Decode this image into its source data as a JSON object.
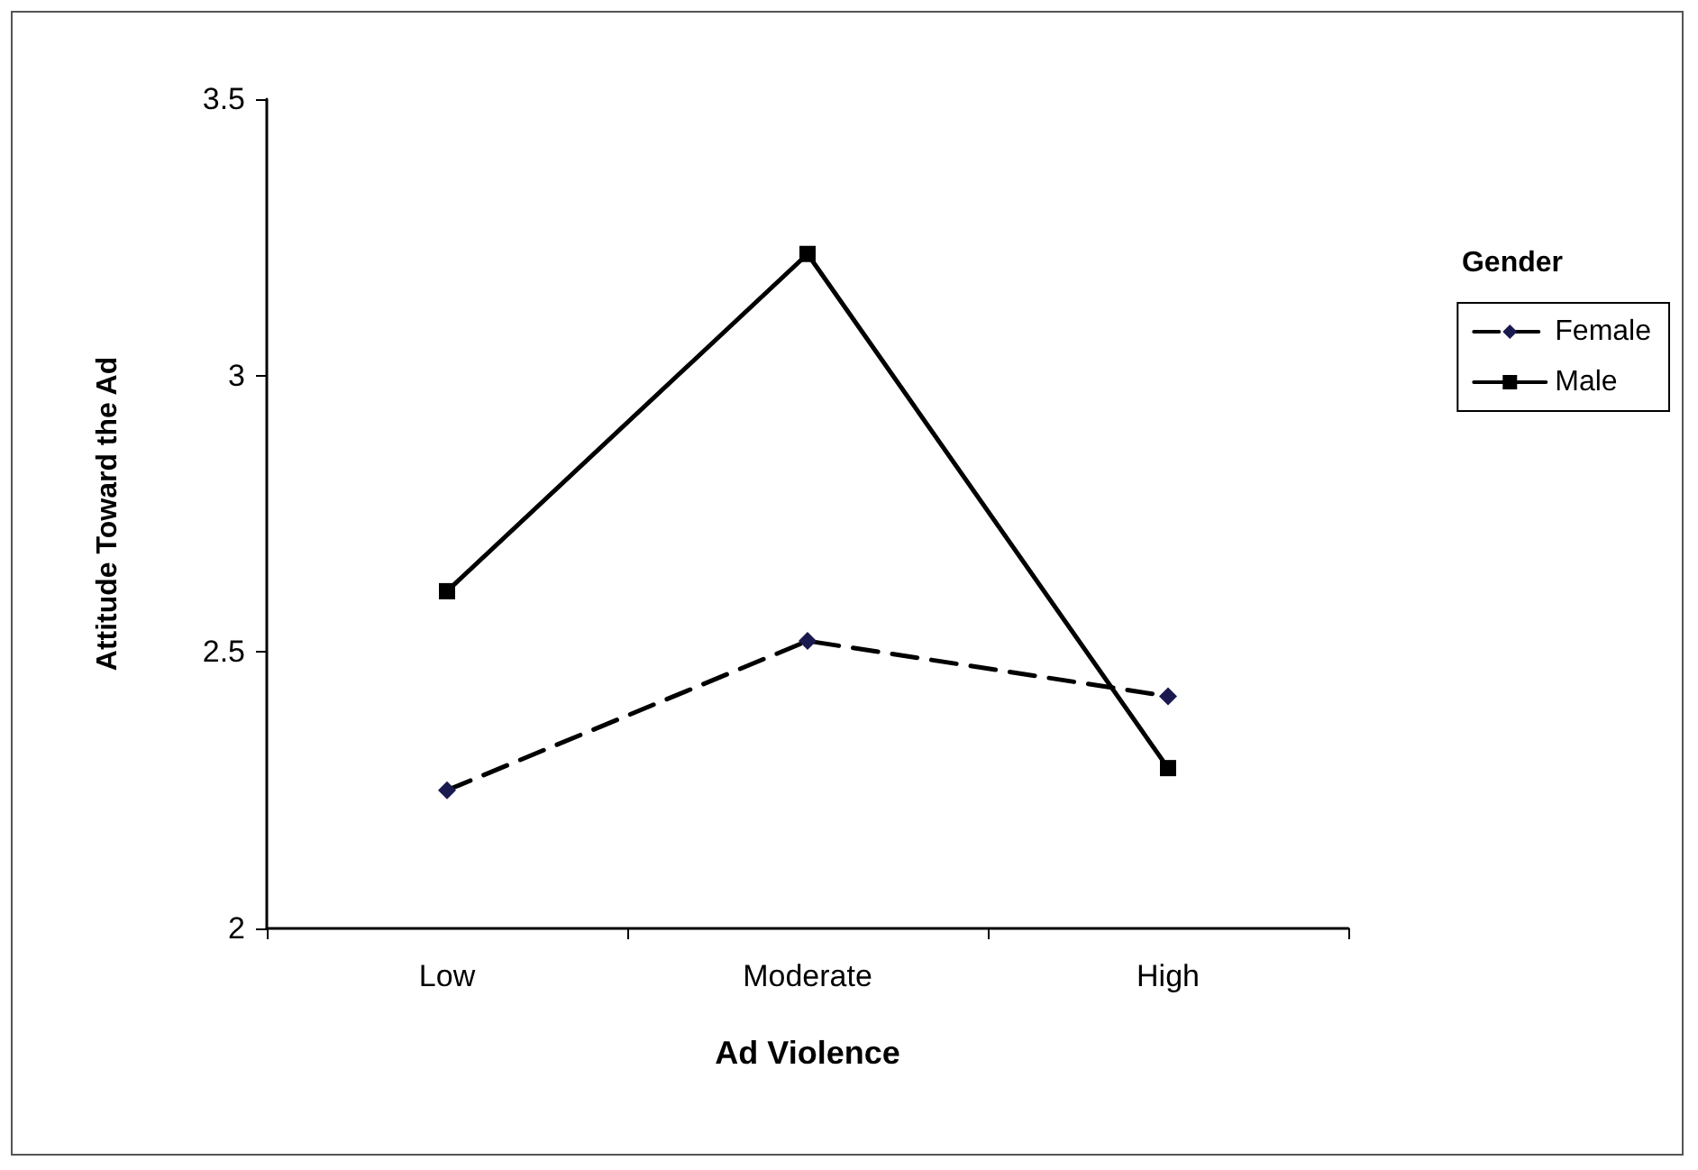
{
  "chart_data": {
    "type": "line",
    "xlabel": "Ad Violence",
    "ylabel": "Attitude Toward the Ad",
    "legend_title": "Gender",
    "categories": [
      "Low",
      "Moderate",
      "High"
    ],
    "series": [
      {
        "name": "Female",
        "color": "#1a1a4e",
        "values": [
          2.25,
          2.52,
          2.42
        ],
        "marker": "diamond",
        "line_style": "dashed"
      },
      {
        "name": "Male",
        "color": "#000000",
        "values": [
          2.61,
          3.22,
          2.29
        ],
        "marker": "square",
        "line_style": "solid"
      }
    ],
    "ylim": [
      2,
      3.5
    ],
    "yticks": [
      2,
      2.5,
      3,
      3.5
    ],
    "grid": false,
    "legend": "right"
  }
}
